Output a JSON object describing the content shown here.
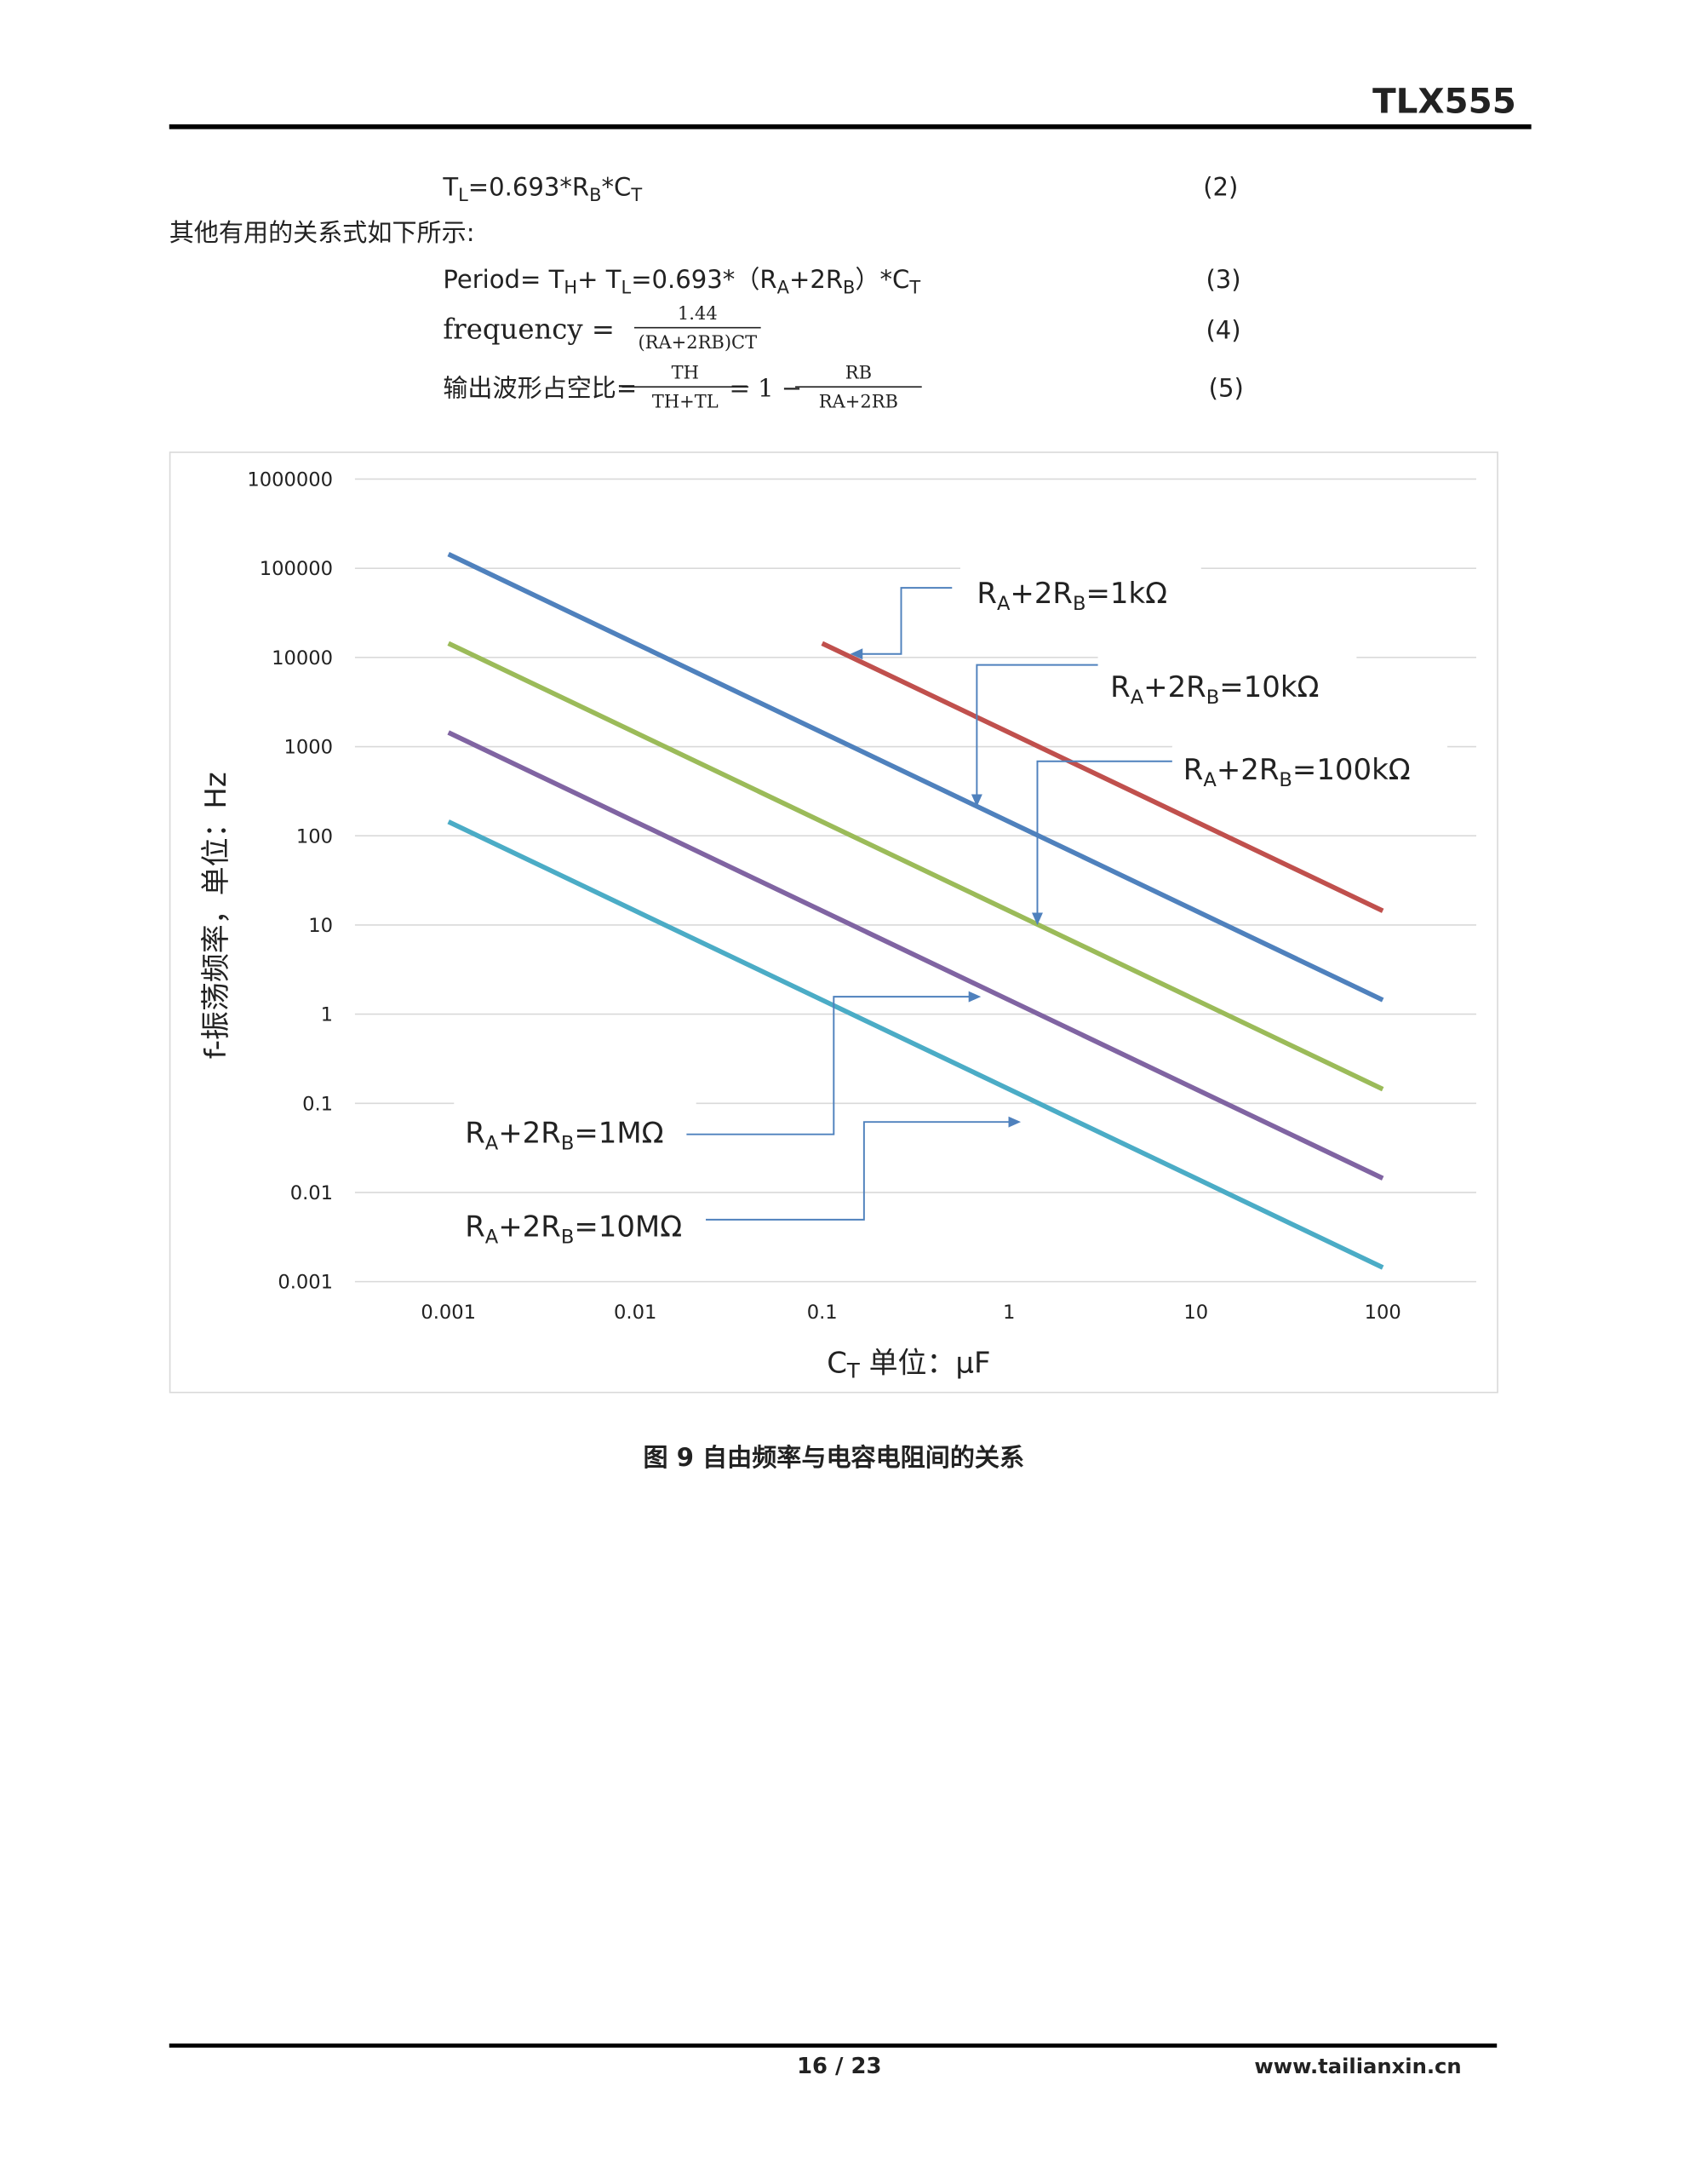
{
  "header": {
    "title": "TLX555"
  },
  "equations": [
    {
      "parts": [
        "T",
        "L",
        "=0.693*R",
        "B",
        "*C",
        "T"
      ],
      "number": "(2)"
    },
    {
      "text": "其他有用的关系式如下所示:"
    },
    {
      "parts": [
        "Period= T",
        "H",
        "+ T",
        "L",
        "=0.693*（R",
        "A",
        "+2R",
        "B",
        "）*C",
        "T"
      ],
      "number": "(3)"
    },
    {
      "lhs": "frequency =",
      "numerator": "1.44",
      "denominator": "(RA+2RB)CT",
      "number": "(4)"
    },
    {
      "lhs": "输出波形占空比=",
      "numerator": "TH",
      "denominator": "TH+TL",
      "middle": "= 1 −",
      "numerator2": "RB",
      "denominator2": "RA+2RB",
      "number": "(5)"
    }
  ],
  "chart_data": {
    "type": "line",
    "x_label_parts": [
      "C",
      "T",
      " 单位：µF"
    ],
    "y_label": "f-振荡频率，单位：Hz",
    "categories": [
      "0.001",
      "0.01",
      "0.1",
      "1",
      "10",
      "100"
    ],
    "ylim": [
      0.001,
      1000000
    ],
    "yticks": [
      0.001,
      0.01,
      0.1,
      1,
      10,
      100,
      1000,
      10000,
      100000,
      1000000
    ],
    "log_scale": true,
    "grid": true,
    "series": [
      {
        "name": "RA+2RB=1kΩ",
        "color": "#c0504d",
        "values": [
          null,
          null,
          14400,
          1440,
          144,
          14.4
        ]
      },
      {
        "name": "RA+2RB=10kΩ",
        "color": "#4f81bd",
        "values": [
          144000,
          14400,
          1440,
          144,
          14.4,
          1.44
        ]
      },
      {
        "name": "RA+2RB=100kΩ",
        "color": "#9bbb59",
        "values": [
          14400,
          1440,
          144,
          14.4,
          1.44,
          0.144
        ]
      },
      {
        "name": "RA+2RB=1MΩ",
        "color": "#8064a2",
        "values": [
          1440,
          144,
          14.4,
          1.44,
          0.144,
          0.0144
        ]
      },
      {
        "name": "RA+2RB=10MΩ",
        "color": "#4bacc6",
        "values": [
          144,
          14.4,
          1.44,
          0.144,
          0.0144,
          0.00144
        ]
      }
    ]
  },
  "caption": "图 9 自由频率与电容电阻间的关系",
  "footer": {
    "page": "16 / 23",
    "website": "www.tailianxin.cn"
  }
}
